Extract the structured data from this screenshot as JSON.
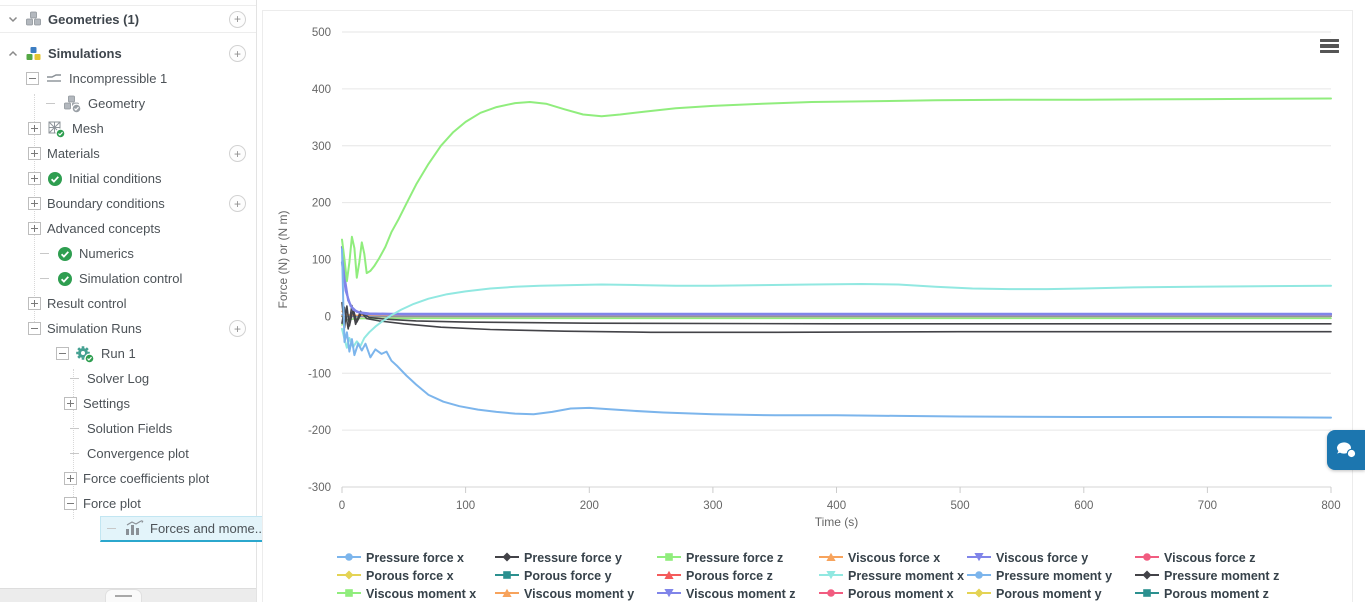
{
  "sidebar": {
    "tree": [
      {
        "label": "Geometries (1)",
        "indent": 6,
        "expander": "chevron-down",
        "icon": "cubes",
        "add": true,
        "section": true,
        "first": true
      },
      {
        "label": "Simulations",
        "indent": 6,
        "expander": "chevron-up",
        "icon": "simulations",
        "add": true,
        "section": true
      },
      {
        "label": "Incompressible 1",
        "indent": 26,
        "expander": "minus",
        "icon": "streamlines"
      },
      {
        "label": "Geometry",
        "indent": 44,
        "expander": "dash",
        "icon": "cubes-check"
      },
      {
        "label": "Mesh",
        "indent": 28,
        "expander": "plus",
        "icon": "mesh-check"
      },
      {
        "label": "Materials",
        "indent": 28,
        "expander": "plus",
        "add": true
      },
      {
        "label": "Initial conditions",
        "indent": 28,
        "expander": "plus",
        "icon": "check"
      },
      {
        "label": "Boundary conditions",
        "indent": 28,
        "expander": "plus",
        "add": true
      },
      {
        "label": "Advanced concepts",
        "indent": 28,
        "expander": "plus"
      },
      {
        "label": "Numerics",
        "indent": 38,
        "expander": "dash",
        "icon": "check"
      },
      {
        "label": "Simulation control",
        "indent": 38,
        "expander": "dash",
        "icon": "check"
      },
      {
        "label": "Result control",
        "indent": 28,
        "expander": "plus"
      },
      {
        "label": "Simulation Runs",
        "indent": 28,
        "expander": "minus",
        "add": true
      },
      {
        "label": "Run 1",
        "indent": 56,
        "expander": "minus",
        "icon": "gear-check"
      },
      {
        "label": "Solver Log",
        "indent": 68,
        "expander": "dash"
      },
      {
        "label": "Settings",
        "indent": 64,
        "expander": "plus"
      },
      {
        "label": "Solution Fields",
        "indent": 68,
        "expander": "dash"
      },
      {
        "label": "Convergence plot",
        "indent": 68,
        "expander": "dash"
      },
      {
        "label": "Force coefficients plot",
        "indent": 64,
        "expander": "plus"
      },
      {
        "label": "Force plot",
        "indent": 64,
        "expander": "minus"
      },
      {
        "label": "Forces and mome...",
        "indent": 0,
        "expander": "dash",
        "icon": "chart",
        "selected": true
      }
    ]
  },
  "chart_data": {
    "type": "line",
    "title": "",
    "xlabel": "Time (s)",
    "ylabel": "Force (N) or (N m)",
    "xlim": [
      0,
      800
    ],
    "ylim": [
      -300,
      500
    ],
    "xticks": [
      0,
      100,
      200,
      300,
      400,
      500,
      600,
      700,
      800
    ],
    "yticks": [
      500,
      400,
      300,
      200,
      100,
      0,
      -100,
      -200,
      -300
    ],
    "grid": true,
    "legend_position": "bottom",
    "series": [
      {
        "name": "Pressure force x",
        "color": "#7cb5ec",
        "symbol": "circle",
        "points": [
          [
            0,
            118
          ],
          [
            1,
            30
          ],
          [
            2,
            -45
          ],
          [
            4,
            -28
          ],
          [
            6,
            -62
          ],
          [
            8,
            -40
          ],
          [
            10,
            -68
          ],
          [
            13,
            -48
          ],
          [
            16,
            -60
          ],
          [
            19,
            -48
          ],
          [
            23,
            -72
          ],
          [
            27,
            -58
          ],
          [
            32,
            -66
          ],
          [
            36,
            -62
          ],
          [
            40,
            -78
          ],
          [
            45,
            -88
          ],
          [
            52,
            -104
          ],
          [
            60,
            -120
          ],
          [
            70,
            -138
          ],
          [
            82,
            -150
          ],
          [
            95,
            -158
          ],
          [
            110,
            -164
          ],
          [
            125,
            -168
          ],
          [
            140,
            -171
          ],
          [
            155,
            -172
          ],
          [
            170,
            -168
          ],
          [
            185,
            -162
          ],
          [
            200,
            -161
          ],
          [
            215,
            -163
          ],
          [
            235,
            -166
          ],
          [
            260,
            -169
          ],
          [
            300,
            -172
          ],
          [
            350,
            -174
          ],
          [
            400,
            -174
          ],
          [
            450,
            -175
          ],
          [
            500,
            -176
          ],
          [
            600,
            -177
          ],
          [
            700,
            -177
          ],
          [
            800,
            -178
          ]
        ]
      },
      {
        "name": "Pressure force y",
        "color": "#434348",
        "symbol": "diamond",
        "points": [
          [
            0,
            -12
          ],
          [
            2,
            16
          ],
          [
            5,
            -22
          ],
          [
            8,
            19
          ],
          [
            11,
            -14
          ],
          [
            15,
            9
          ],
          [
            20,
            -4
          ],
          [
            30,
            -8
          ],
          [
            50,
            -13
          ],
          [
            80,
            -19
          ],
          [
            120,
            -23
          ],
          [
            180,
            -26
          ],
          [
            250,
            -28
          ],
          [
            350,
            -28
          ],
          [
            500,
            -27
          ],
          [
            800,
            -27
          ]
        ]
      },
      {
        "name": "Pressure force z",
        "color": "#90ed7d",
        "symbol": "square",
        "points": [
          [
            0,
            135
          ],
          [
            2,
            100
          ],
          [
            4,
            62
          ],
          [
            6,
            95
          ],
          [
            8,
            140
          ],
          [
            10,
            120
          ],
          [
            12,
            68
          ],
          [
            14,
            95
          ],
          [
            16,
            130
          ],
          [
            18,
            110
          ],
          [
            20,
            76
          ],
          [
            23,
            80
          ],
          [
            26,
            88
          ],
          [
            30,
            102
          ],
          [
            35,
            122
          ],
          [
            40,
            148
          ],
          [
            46,
            172
          ],
          [
            52,
            198
          ],
          [
            60,
            232
          ],
          [
            70,
            268
          ],
          [
            80,
            300
          ],
          [
            90,
            324
          ],
          [
            100,
            342
          ],
          [
            112,
            358
          ],
          [
            125,
            368
          ],
          [
            140,
            375
          ],
          [
            152,
            377
          ],
          [
            165,
            374
          ],
          [
            180,
            364
          ],
          [
            195,
            355
          ],
          [
            210,
            352
          ],
          [
            225,
            355
          ],
          [
            245,
            360
          ],
          [
            270,
            366
          ],
          [
            300,
            370
          ],
          [
            340,
            374
          ],
          [
            380,
            377
          ],
          [
            420,
            378
          ],
          [
            480,
            380
          ],
          [
            540,
            381
          ],
          [
            600,
            381
          ],
          [
            700,
            382
          ],
          [
            800,
            383
          ]
        ]
      },
      {
        "name": "Viscous force x",
        "color": "#f7a35c",
        "symbol": "triangle",
        "points": [
          [
            0,
            9
          ],
          [
            3,
            3
          ],
          [
            10,
            2
          ],
          [
            30,
            1.5
          ],
          [
            800,
            1.5
          ]
        ]
      },
      {
        "name": "Viscous force y",
        "color": "#8085e9",
        "symbol": "triangle-down",
        "points": [
          [
            0,
            122
          ],
          [
            2,
            70
          ],
          [
            5,
            28
          ],
          [
            9,
            12
          ],
          [
            14,
            7
          ],
          [
            22,
            5
          ],
          [
            40,
            4.5
          ],
          [
            100,
            4.5
          ],
          [
            800,
            4.5
          ]
        ]
      },
      {
        "name": "Viscous force z",
        "color": "#f15c80",
        "symbol": "circle",
        "points": [
          [
            0,
            2
          ],
          [
            5,
            0.8
          ],
          [
            800,
            0.8
          ]
        ]
      },
      {
        "name": "Porous force x",
        "color": "#e4d354",
        "symbol": "diamond",
        "points": [
          [
            0,
            0
          ],
          [
            800,
            0
          ]
        ]
      },
      {
        "name": "Porous force y",
        "color": "#2b908f",
        "symbol": "square",
        "points": [
          [
            0,
            0
          ],
          [
            800,
            0
          ]
        ]
      },
      {
        "name": "Porous force z",
        "color": "#f45b5b",
        "symbol": "triangle",
        "points": [
          [
            0,
            0
          ],
          [
            800,
            0
          ]
        ]
      },
      {
        "name": "Pressure moment x",
        "color": "#91e8e1",
        "symbol": "triangle-down",
        "points": [
          [
            0,
            -22
          ],
          [
            2,
            -40
          ],
          [
            4,
            -55
          ],
          [
            6,
            -38
          ],
          [
            9,
            -54
          ],
          [
            12,
            -44
          ],
          [
            15,
            -52
          ],
          [
            18,
            -38
          ],
          [
            22,
            -28
          ],
          [
            27,
            -18
          ],
          [
            33,
            -8
          ],
          [
            40,
            2
          ],
          [
            48,
            12
          ],
          [
            58,
            22
          ],
          [
            70,
            31
          ],
          [
            85,
            39
          ],
          [
            100,
            44
          ],
          [
            120,
            49
          ],
          [
            140,
            52
          ],
          [
            160,
            54
          ],
          [
            185,
            55
          ],
          [
            210,
            56
          ],
          [
            240,
            55
          ],
          [
            270,
            54
          ],
          [
            300,
            54
          ],
          [
            340,
            55
          ],
          [
            380,
            56
          ],
          [
            420,
            57
          ],
          [
            450,
            56
          ],
          [
            480,
            52
          ],
          [
            510,
            49
          ],
          [
            540,
            48
          ],
          [
            570,
            48
          ],
          [
            600,
            49
          ],
          [
            640,
            51
          ],
          [
            690,
            52
          ],
          [
            740,
            53
          ],
          [
            800,
            54
          ]
        ]
      },
      {
        "name": "Pressure moment y",
        "color": "#7cb5ec",
        "symbol": "circle",
        "points": [
          [
            0,
            3
          ],
          [
            5,
            1
          ],
          [
            800,
            1
          ]
        ]
      },
      {
        "name": "Pressure moment z",
        "color": "#434348",
        "symbol": "diamond",
        "points": [
          [
            0,
            24
          ],
          [
            2,
            -20
          ],
          [
            4,
            18
          ],
          [
            6,
            -17
          ],
          [
            9,
            13
          ],
          [
            12,
            -10
          ],
          [
            16,
            7
          ],
          [
            22,
            -2
          ],
          [
            35,
            -5
          ],
          [
            60,
            -8
          ],
          [
            100,
            -10
          ],
          [
            200,
            -12
          ],
          [
            400,
            -13
          ],
          [
            800,
            -13
          ]
        ]
      },
      {
        "name": "Viscous moment x",
        "color": "#90ed7d",
        "symbol": "square",
        "points": [
          [
            0,
            -15
          ],
          [
            4,
            -6
          ],
          [
            12,
            -4
          ],
          [
            40,
            -3.5
          ],
          [
            800,
            -3.5
          ]
        ]
      },
      {
        "name": "Viscous moment y",
        "color": "#f7a35c",
        "symbol": "triangle",
        "points": [
          [
            0,
            1
          ],
          [
            800,
            1
          ]
        ]
      },
      {
        "name": "Viscous moment z",
        "color": "#8085e9",
        "symbol": "triangle-down",
        "points": [
          [
            0,
            95
          ],
          [
            3,
            45
          ],
          [
            7,
            18
          ],
          [
            12,
            8
          ],
          [
            20,
            4
          ],
          [
            50,
            3
          ],
          [
            800,
            3
          ]
        ]
      },
      {
        "name": "Porous moment x",
        "color": "#f15c80",
        "symbol": "circle",
        "points": [
          [
            0,
            0
          ],
          [
            800,
            0
          ]
        ]
      },
      {
        "name": "Porous moment y",
        "color": "#e4d354",
        "symbol": "diamond",
        "points": [
          [
            0,
            0
          ],
          [
            800,
            0
          ]
        ]
      },
      {
        "name": "Porous moment z",
        "color": "#2b908f",
        "symbol": "square",
        "points": [
          [
            0,
            0
          ],
          [
            800,
            0
          ]
        ]
      }
    ]
  },
  "chat_button": {
    "icon": "chat-bubbles-icon"
  },
  "chart_menu": {
    "icon": "hamburger-icon"
  },
  "colors": {
    "selection_bg": "#E3F4FA",
    "selection_border": "#2BA7CD",
    "chat_blue": "#1C76AF",
    "check_green": "#2E9E50",
    "gear_teal": "#43A091"
  }
}
